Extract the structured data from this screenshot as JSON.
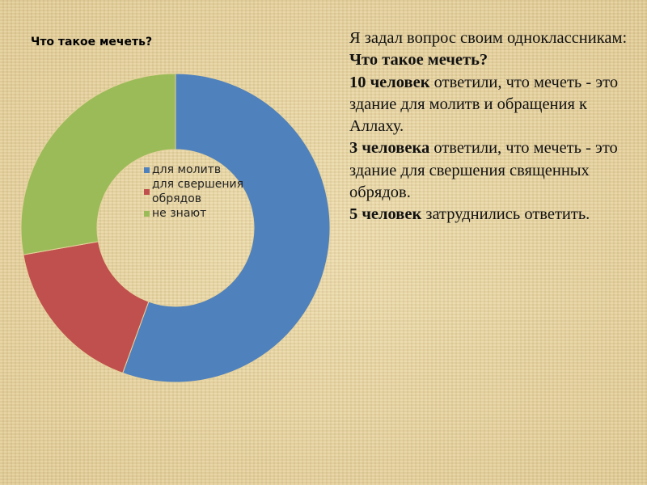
{
  "chart_data": {
    "type": "pie",
    "subtype": "donut",
    "title": "Что такое мечеть?",
    "categories": [
      "для молитв",
      "для свершения обрядов",
      "не знают"
    ],
    "values": [
      10,
      3,
      5
    ],
    "colors": [
      "#4f81bd",
      "#c0504d",
      "#9bbb59"
    ],
    "legend_position": "center"
  },
  "text": {
    "p1_a": "Я задал вопрос своим одноклассникам: ",
    "p1_b": "Что такое мечеть?",
    "p2_a": "10 человек",
    "p2_b": " ответили, что мечеть - это здание для молитв и обращения к Аллаху.",
    "p3_a": "3 человека",
    "p3_b": " ответили, что мечеть - это здание для свершения священных обрядов.",
    "p4_a": "5 человек",
    "p4_b": " затруднились ответить."
  }
}
